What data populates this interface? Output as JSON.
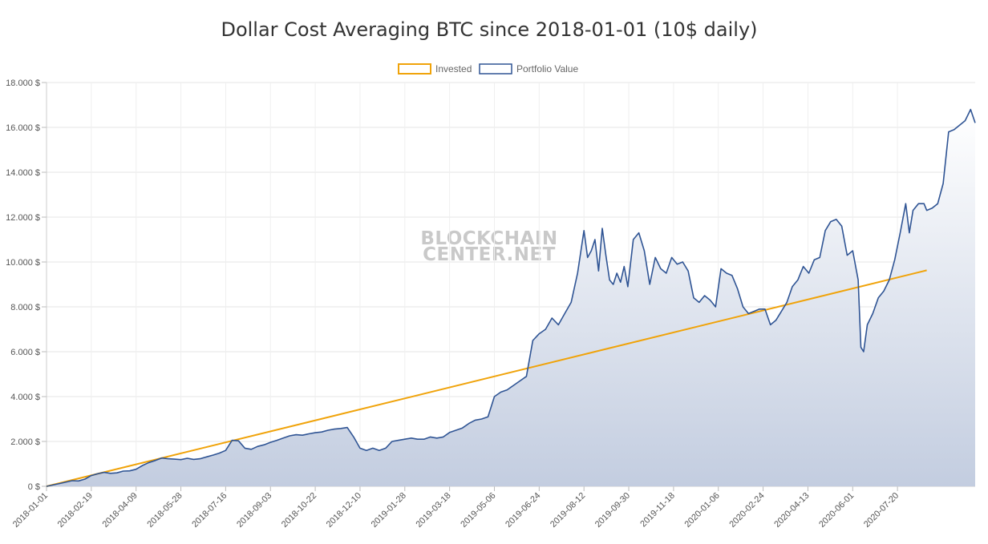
{
  "chart_data": {
    "type": "line",
    "title": "Dollar Cost Averaging BTC since 2018-01-01 (10$ daily)",
    "xlabel": "",
    "ylabel": "",
    "ylim": [
      0,
      18000
    ],
    "y_ticks": [
      0,
      2000,
      4000,
      6000,
      8000,
      10000,
      12000,
      14000,
      16000,
      18000
    ],
    "y_tick_labels": [
      "0 $",
      "2.000 $",
      "4.000 $",
      "6.000 $",
      "8.000 $",
      "10.000 $",
      "12.000 $",
      "14.000 $",
      "16.000 $",
      "18.000 $"
    ],
    "x_tick_labels": [
      "2018-01-01",
      "2018-02-19",
      "2018-04-09",
      "2018-05-28",
      "2018-07-16",
      "2018-09-03",
      "2018-10-22",
      "2018-12-10",
      "2019-01-28",
      "2019-03-18",
      "2019-05-06",
      "2019-06-24",
      "2019-08-12",
      "2019-09-30",
      "2019-11-18",
      "2020-01-06",
      "2020-02-24",
      "2020-04-13",
      "2020-06-01",
      "2020-07-20"
    ],
    "grid": true,
    "legend_position": "top",
    "watermark": [
      "BLOCKCHAIN",
      "CENTER.NET"
    ],
    "series": [
      {
        "name": "Invested",
        "color": "#f0a30a",
        "values": [
          [
            0,
            0
          ],
          [
            963,
            9630
          ]
        ]
      },
      {
        "name": "Portfolio Value",
        "color": "#2f5494",
        "fill": "#c3cde0",
        "values": [
          [
            0,
            0
          ],
          [
            14,
            120
          ],
          [
            28,
            250
          ],
          [
            35,
            240
          ],
          [
            42,
            320
          ],
          [
            49,
            480
          ],
          [
            56,
            560
          ],
          [
            63,
            620
          ],
          [
            70,
            580
          ],
          [
            77,
            600
          ],
          [
            84,
            680
          ],
          [
            91,
            690
          ],
          [
            98,
            760
          ],
          [
            105,
            930
          ],
          [
            112,
            1060
          ],
          [
            119,
            1150
          ],
          [
            126,
            1260
          ],
          [
            133,
            1230
          ],
          [
            140,
            1210
          ],
          [
            147,
            1190
          ],
          [
            154,
            1250
          ],
          [
            161,
            1200
          ],
          [
            168,
            1230
          ],
          [
            175,
            1310
          ],
          [
            182,
            1390
          ],
          [
            189,
            1480
          ],
          [
            196,
            1600
          ],
          [
            203,
            2050
          ],
          [
            210,
            2030
          ],
          [
            217,
            1700
          ],
          [
            224,
            1650
          ],
          [
            231,
            1780
          ],
          [
            238,
            1850
          ],
          [
            245,
            1960
          ],
          [
            252,
            2050
          ],
          [
            259,
            2150
          ],
          [
            266,
            2250
          ],
          [
            273,
            2300
          ],
          [
            280,
            2280
          ],
          [
            287,
            2340
          ],
          [
            294,
            2390
          ],
          [
            301,
            2420
          ],
          [
            308,
            2500
          ],
          [
            315,
            2550
          ],
          [
            322,
            2580
          ],
          [
            329,
            2620
          ],
          [
            336,
            2200
          ],
          [
            343,
            1700
          ],
          [
            350,
            1600
          ],
          [
            357,
            1700
          ],
          [
            364,
            1600
          ],
          [
            371,
            1700
          ],
          [
            378,
            2000
          ],
          [
            385,
            2050
          ],
          [
            392,
            2100
          ],
          [
            399,
            2150
          ],
          [
            406,
            2100
          ],
          [
            413,
            2100
          ],
          [
            420,
            2200
          ],
          [
            427,
            2150
          ],
          [
            434,
            2200
          ],
          [
            441,
            2400
          ],
          [
            448,
            2500
          ],
          [
            455,
            2600
          ],
          [
            462,
            2800
          ],
          [
            469,
            2950
          ],
          [
            476,
            3000
          ],
          [
            483,
            3100
          ],
          [
            490,
            4000
          ],
          [
            497,
            4200
          ],
          [
            504,
            4300
          ],
          [
            511,
            4500
          ],
          [
            518,
            4700
          ],
          [
            525,
            4900
          ],
          [
            532,
            6500
          ],
          [
            539,
            6800
          ],
          [
            546,
            7000
          ],
          [
            553,
            7500
          ],
          [
            560,
            7200
          ],
          [
            567,
            7700
          ],
          [
            574,
            8200
          ],
          [
            581,
            9500
          ],
          [
            588,
            11400
          ],
          [
            592,
            10200
          ],
          [
            596,
            10500
          ],
          [
            600,
            11000
          ],
          [
            604,
            9600
          ],
          [
            608,
            11500
          ],
          [
            612,
            10300
          ],
          [
            616,
            9200
          ],
          [
            620,
            9000
          ],
          [
            624,
            9500
          ],
          [
            628,
            9100
          ],
          [
            632,
            9800
          ],
          [
            636,
            8900
          ],
          [
            642,
            11000
          ],
          [
            648,
            11300
          ],
          [
            654,
            10500
          ],
          [
            660,
            9000
          ],
          [
            666,
            10200
          ],
          [
            672,
            9700
          ],
          [
            678,
            9500
          ],
          [
            684,
            10200
          ],
          [
            690,
            9900
          ],
          [
            696,
            10000
          ],
          [
            702,
            9600
          ],
          [
            708,
            8400
          ],
          [
            714,
            8200
          ],
          [
            720,
            8500
          ],
          [
            726,
            8300
          ],
          [
            732,
            8000
          ],
          [
            738,
            9700
          ],
          [
            744,
            9500
          ],
          [
            750,
            9400
          ],
          [
            756,
            8800
          ],
          [
            762,
            8000
          ],
          [
            768,
            7700
          ],
          [
            774,
            7800
          ],
          [
            780,
            7900
          ],
          [
            786,
            7900
          ],
          [
            792,
            7200
          ],
          [
            798,
            7400
          ],
          [
            804,
            7800
          ],
          [
            810,
            8200
          ],
          [
            816,
            8900
          ],
          [
            822,
            9200
          ],
          [
            828,
            9800
          ],
          [
            834,
            9500
          ],
          [
            840,
            10100
          ],
          [
            846,
            10200
          ],
          [
            852,
            11400
          ],
          [
            858,
            11800
          ],
          [
            864,
            11900
          ],
          [
            870,
            11600
          ],
          [
            876,
            10300
          ],
          [
            882,
            10500
          ],
          [
            888,
            9200
          ],
          [
            891,
            6200
          ],
          [
            894,
            6000
          ],
          [
            898,
            7200
          ],
          [
            904,
            7700
          ],
          [
            910,
            8400
          ],
          [
            916,
            8700
          ],
          [
            922,
            9200
          ],
          [
            928,
            10100
          ],
          [
            934,
            11300
          ],
          [
            940,
            12600
          ],
          [
            944,
            11300
          ],
          [
            948,
            12300
          ],
          [
            954,
            12600
          ],
          [
            960,
            12600
          ],
          [
            963,
            12300
          ],
          [
            969,
            12400
          ],
          [
            975,
            12600
          ],
          [
            981,
            13500
          ],
          [
            987,
            15800
          ],
          [
            993,
            15900
          ],
          [
            999,
            16100
          ],
          [
            1005,
            16300
          ],
          [
            1011,
            16800
          ],
          [
            1016,
            16200
          ]
        ]
      }
    ]
  }
}
